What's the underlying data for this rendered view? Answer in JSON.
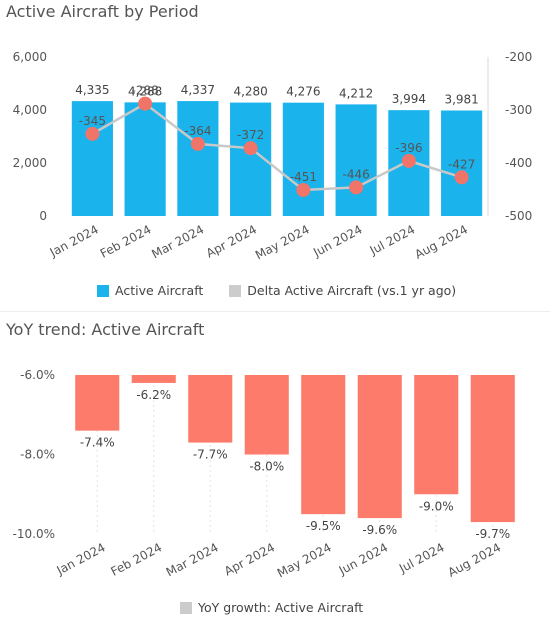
{
  "panel1": {
    "title": "Active Aircraft by Period",
    "legend": [
      {
        "label": "Active Aircraft",
        "color": "#1ab3ec"
      },
      {
        "label": "Delta Active Aircraft (vs.1 yr ago)",
        "color": "#cccccc"
      }
    ]
  },
  "panel2": {
    "title": "YoY trend: Active Aircraft",
    "legend": [
      {
        "label": "YoY growth: Active Aircraft",
        "color": "#cccccc"
      }
    ]
  },
  "colors": {
    "bar_blue": "#1ab3ec",
    "line_gray": "#c8c8c8",
    "marker": "#f07468",
    "bar_salmon": "#fd7b6b"
  },
  "chart_data": [
    {
      "type": "bar",
      "title": "Active Aircraft by Period",
      "categories": [
        "Jan 2024",
        "Feb 2024",
        "Mar 2024",
        "Apr 2024",
        "May 2024",
        "Jun 2024",
        "Jul 2024",
        "Aug 2024"
      ],
      "series": [
        {
          "name": "Active Aircraft",
          "type": "bar",
          "axis": "left",
          "values": [
            4335,
            4288,
            4337,
            4280,
            4276,
            4212,
            3994,
            3981
          ],
          "labels": [
            "4,335",
            "4,288",
            "4,337",
            "4,280",
            "4,276",
            "4,212",
            "3,994",
            "3,981"
          ]
        },
        {
          "name": "Delta Active Aircraft (vs.1 yr ago)",
          "type": "line",
          "axis": "right",
          "values": [
            -345,
            -288,
            -364,
            -372,
            -451,
            -446,
            -396,
            -427
          ],
          "labels": [
            "-345",
            "-288",
            "-364",
            "-372",
            "-451",
            "-446",
            "-396",
            "-427"
          ]
        }
      ],
      "ylim_left": [
        0,
        6000
      ],
      "yticks_left": [
        "0",
        "2,000",
        "4,000",
        "6,000"
      ],
      "ylim_right": [
        -500,
        -200
      ],
      "yticks_right": [
        "-200",
        "-300",
        "-400",
        "-500"
      ],
      "legend": "bottom"
    },
    {
      "type": "bar",
      "title": "YoY trend: Active Aircraft",
      "categories": [
        "Jan 2024",
        "Feb 2024",
        "Mar 2024",
        "Apr 2024",
        "May 2024",
        "Jun 2024",
        "Jul 2024",
        "Aug 2024"
      ],
      "series": [
        {
          "name": "YoY growth: Active Aircraft",
          "values": [
            -7.4,
            -6.2,
            -7.7,
            -8.0,
            -9.5,
            -9.6,
            -9.0,
            -9.7
          ],
          "labels": [
            "-7.4%",
            "-6.2%",
            "-7.7%",
            "-8.0%",
            "-9.5%",
            "-9.6%",
            "-9.0%",
            "-9.7%"
          ]
        }
      ],
      "ylim": [
        -10,
        -6
      ],
      "yticks": [
        "-6.0%",
        "-8.0%",
        "-10.0%"
      ],
      "legend": "bottom"
    }
  ]
}
